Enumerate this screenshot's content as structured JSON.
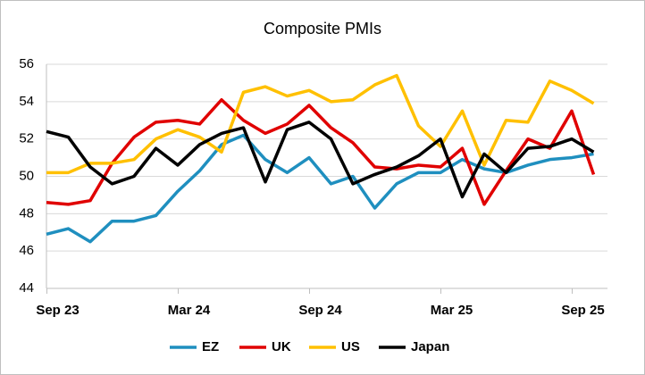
{
  "chart_data": {
    "type": "line",
    "title": "Composite PMIs",
    "categories": [
      null,
      "Sep 23",
      null,
      null,
      null,
      null,
      null,
      "Mar 24",
      null,
      null,
      null,
      null,
      null,
      "Sep 24",
      null,
      null,
      null,
      null,
      null,
      "Mar 25",
      null,
      null,
      null,
      null,
      null,
      "Sep 25"
    ],
    "series": [
      {
        "name": "EZ",
        "color": "#1f8fbf",
        "values": [
          46.9,
          47.2,
          46.5,
          47.6,
          47.6,
          47.9,
          49.2,
          50.3,
          51.7,
          52.2,
          50.9,
          50.2,
          51.0,
          49.6,
          50.0,
          48.3,
          49.6,
          50.2,
          50.2,
          50.9,
          50.4,
          50.2,
          50.6,
          50.9,
          51.0,
          51.2
        ]
      },
      {
        "name": "UK",
        "color": "#e00000",
        "values": [
          48.6,
          48.5,
          48.7,
          50.7,
          52.1,
          52.9,
          53.0,
          52.8,
          54.1,
          53.0,
          52.3,
          52.8,
          53.8,
          52.6,
          51.8,
          50.5,
          50.4,
          50.6,
          50.5,
          51.5,
          48.5,
          50.3,
          52.0,
          51.5,
          53.5,
          50.1
        ]
      },
      {
        "name": "US",
        "color": "#ffc000",
        "values": [
          50.2,
          50.2,
          50.7,
          50.7,
          50.9,
          52.0,
          52.5,
          52.1,
          51.3,
          54.5,
          54.8,
          54.3,
          54.6,
          54.0,
          54.1,
          54.9,
          55.4,
          52.7,
          51.6,
          53.5,
          50.6,
          53.0,
          52.9,
          55.1,
          54.6,
          53.9
        ]
      },
      {
        "name": "Japan",
        "color": "#000000",
        "values": [
          52.4,
          52.1,
          50.5,
          49.6,
          50.0,
          51.5,
          50.6,
          51.7,
          52.3,
          52.6,
          49.7,
          52.5,
          52.9,
          52.0,
          49.6,
          50.1,
          50.5,
          51.1,
          52.0,
          48.9,
          51.2,
          50.2,
          51.5,
          51.6,
          52.0,
          51.3
        ]
      }
    ],
    "ylim": [
      44,
      56
    ],
    "yticks": [
      44,
      46,
      48,
      50,
      52,
      54,
      56
    ],
    "grid": true,
    "legend": "bottom"
  }
}
